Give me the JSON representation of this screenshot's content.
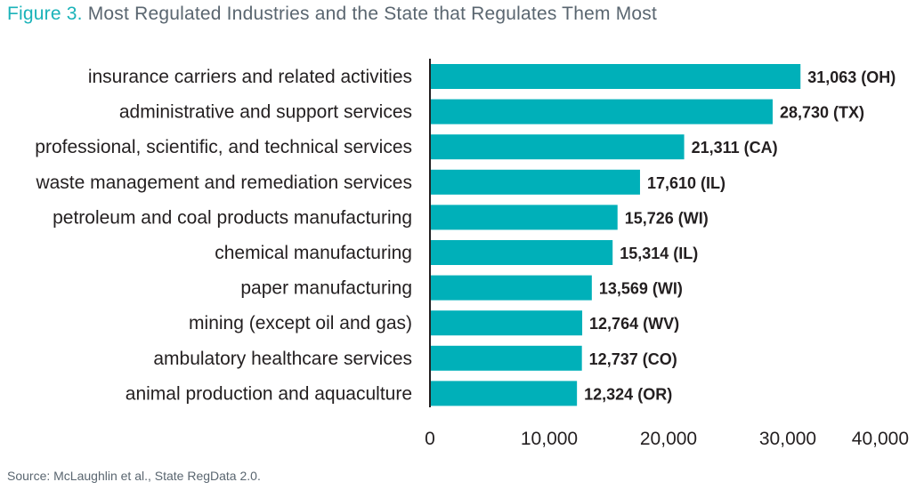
{
  "title_prefix": "Figure 3.",
  "title_text": "Most Regulated Industries and the State that Regulates Them Most",
  "source": "Source: McLaughlin et al., State RegData 2.0.",
  "colors": {
    "bar": "#00b0b9",
    "axis": "#231f20",
    "title_accent": "#1ab3b9",
    "title_text": "#5a6670"
  },
  "chart_data": {
    "type": "bar",
    "orientation": "horizontal",
    "title": "Most Regulated Industries and the State that Regulates Them Most",
    "xlim": [
      0,
      40000
    ],
    "xticks": [
      0,
      10000,
      20000,
      30000,
      40000
    ],
    "xtick_labels": [
      "0",
      "10,000",
      "20,000",
      "30,000",
      "40,000"
    ],
    "grid": false,
    "categories": [
      "insurance carriers and related activities",
      "administrative and support services",
      "professional, scientific, and technical services",
      "waste management and remediation services",
      "petroleum and coal products manufacturing",
      "chemical manufacturing",
      "paper manufacturing",
      "mining (except oil and gas)",
      "ambulatory healthcare services",
      "animal production and aquaculture"
    ],
    "values": [
      31063,
      28730,
      21311,
      17610,
      15726,
      15314,
      13569,
      12764,
      12737,
      12324
    ],
    "data_labels": [
      "31,063 (OH)",
      "28,730 (TX)",
      "21,311 (CA)",
      "17,610 (IL)",
      "15,726 (WI)",
      "15,314 (IL)",
      "13,569 (WI)",
      "12,764 (WV)",
      "12,737 (CO)",
      "12,324 (OR)"
    ]
  }
}
